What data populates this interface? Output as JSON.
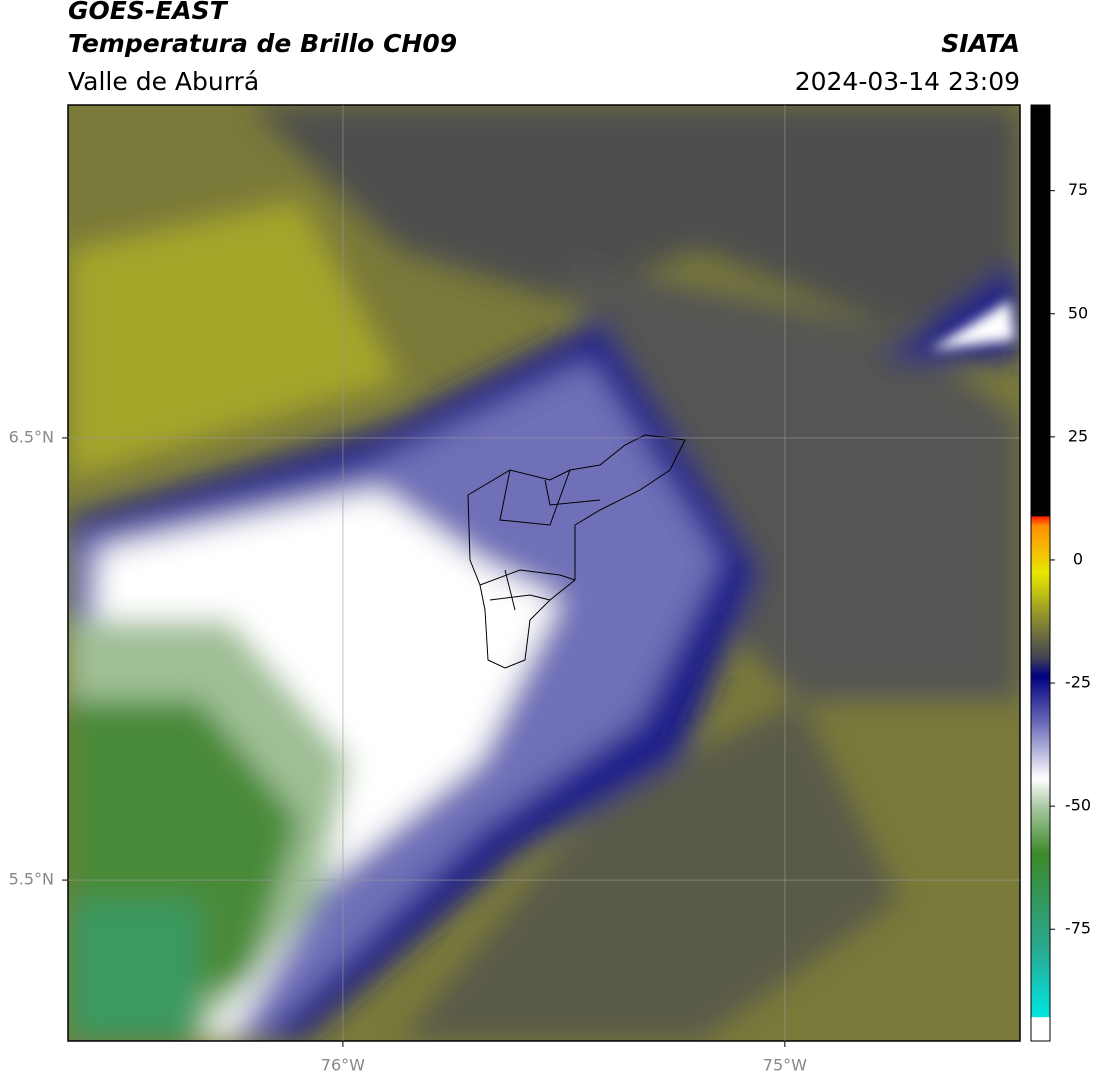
{
  "header": {
    "title": "GOES-EAST",
    "subtitle": "Temperatura de Brillo CH09",
    "region": "Valle de Aburrá",
    "source": "SIATA",
    "datetime": "2024-03-14 23:09"
  },
  "map": {
    "xlim": [
      -76.622,
      -74.468
    ],
    "ylim": [
      5.136,
      7.253
    ],
    "xticks": [
      {
        "value": -76,
        "label": "76°W"
      },
      {
        "value": -75,
        "label": "75°W"
      }
    ],
    "yticks": [
      {
        "value": 6.5,
        "label": "6.5°N"
      },
      {
        "value": 5.5,
        "label": "5.5°N"
      }
    ]
  },
  "colorbar": {
    "lim": [
      -97.7,
      92.4
    ],
    "ticks": [
      75,
      50,
      25,
      0,
      -25,
      -50,
      -75
    ]
  }
}
